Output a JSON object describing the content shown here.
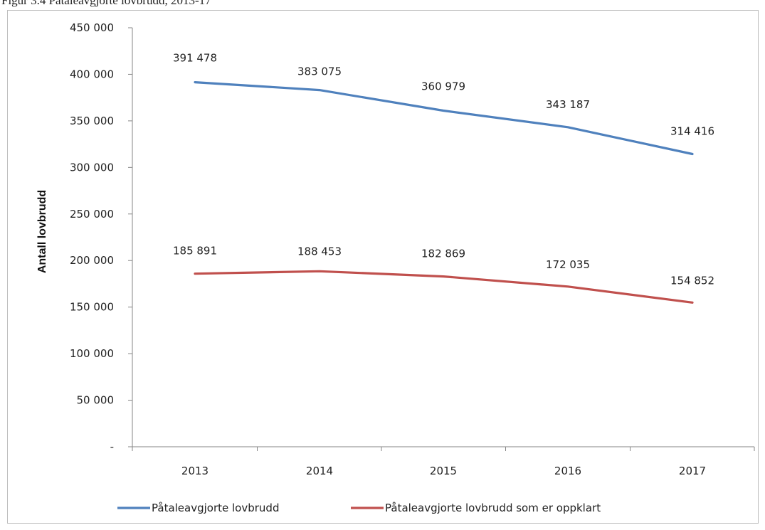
{
  "figure": {
    "title": "Figur 3.4 Påtaleavgjorte lovbrudd, 2013-17"
  },
  "chart_data": {
    "type": "line",
    "x": [
      "2013",
      "2014",
      "2015",
      "2016",
      "2017"
    ],
    "ylabel": "Antall lovbrudd",
    "ylim": [
      0,
      450000
    ],
    "yticks": [
      {
        "value": 0,
        "label": "-"
      },
      {
        "value": 50000,
        "label": "50 000"
      },
      {
        "value": 100000,
        "label": "100 000"
      },
      {
        "value": 150000,
        "label": "150 000"
      },
      {
        "value": 200000,
        "label": "200 000"
      },
      {
        "value": 250000,
        "label": "250 000"
      },
      {
        "value": 300000,
        "label": "300 000"
      },
      {
        "value": 350000,
        "label": "350 000"
      },
      {
        "value": 400000,
        "label": "400 000"
      },
      {
        "value": 450000,
        "label": "450 000"
      }
    ],
    "grid": false,
    "legend_position": "bottom",
    "series": [
      {
        "name": "Påtaleavgjorte lovbrudd",
        "color": "#4f81bd",
        "values": [
          391478,
          383075,
          360979,
          343187,
          314416
        ],
        "labels": [
          "391 478",
          "383 075",
          "360 979",
          "343 187",
          "314 416"
        ]
      },
      {
        "name": "Påtaleavgjorte lovbrudd som er oppklart",
        "color": "#c0504d",
        "values": [
          185891,
          188453,
          182869,
          172035,
          154852
        ],
        "labels": [
          "185 891",
          "188 453",
          "182 869",
          "172 035",
          "154 852"
        ]
      }
    ]
  }
}
